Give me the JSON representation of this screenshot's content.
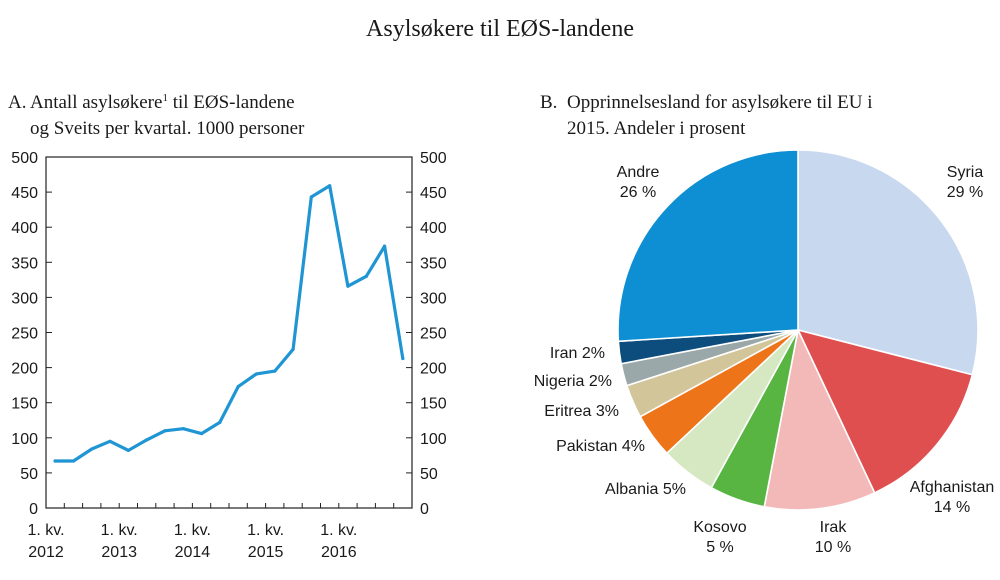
{
  "page_title": "Asylsøkere til EØS-landene",
  "chart_data": [
    {
      "type": "line",
      "panel_letter": "A.",
      "title_line1_pre": "Antall asylsøkere",
      "title_footnote": "1",
      "title_line1_post": " til EØS-landene",
      "title_line2": "og Sveits per kvartal. 1000 personer",
      "ylim": [
        0,
        500
      ],
      "y_ticks": [
        0,
        50,
        100,
        150,
        200,
        250,
        300,
        350,
        400,
        450,
        500
      ],
      "y_tick_labels": [
        "0",
        "50",
        "100",
        "150",
        "200",
        "250",
        "300",
        "350",
        "400",
        "450",
        "500"
      ],
      "x_range": [
        0,
        20
      ],
      "x_ticks": [
        {
          "x": 0,
          "line1": "1. kv.",
          "line2": "2012"
        },
        {
          "x": 4,
          "line1": "1. kv.",
          "line2": "2013"
        },
        {
          "x": 8,
          "line1": "1. kv.",
          "line2": "2014"
        },
        {
          "x": 12,
          "line1": "1. kv.",
          "line2": "2015"
        },
        {
          "x": 16,
          "line1": "1. kv.",
          "line2": "2016"
        }
      ],
      "series": [
        {
          "name": "Asylsøkere",
          "color": "#1f95d4",
          "x": [
            0.5,
            1.5,
            2.5,
            3.5,
            4.5,
            5.5,
            6.5,
            7.5,
            8.5,
            9.5,
            10.5,
            11.5,
            12.5,
            13.5,
            14.5,
            15.5,
            16.5,
            17.5,
            18.5,
            19.5
          ],
          "values": [
            67,
            67,
            84,
            95,
            82,
            97,
            110,
            113,
            106,
            122,
            173,
            191,
            195,
            226,
            443,
            459,
            316,
            330,
            373,
            213
          ]
        }
      ]
    },
    {
      "type": "pie",
      "panel_letter": "B.",
      "title_line1": "Opprinnelsesland for asylsøkere til EU i",
      "title_line2": "2015. Andeler i prosent",
      "slices": [
        {
          "name": "Syria",
          "value": 29,
          "color": "#c8d8ef",
          "label_line1": "Syria",
          "label_line2": "29 %"
        },
        {
          "name": "Afghanistan",
          "value": 14,
          "color": "#e04f4f",
          "label_line1": "Afghanistan",
          "label_line2": "14 %"
        },
        {
          "name": "Irak",
          "value": 10,
          "color": "#f3b9b9",
          "label_line1": "Irak",
          "label_line2": "10 %"
        },
        {
          "name": "Kosovo",
          "value": 5,
          "color": "#58b542",
          "label_line1": "Kosovo",
          "label_line2": "5 %"
        },
        {
          "name": "Albania",
          "value": 5,
          "color": "#d5e8c2",
          "label_line1": "Albania 5%",
          "label_line2": ""
        },
        {
          "name": "Pakistan",
          "value": 4,
          "color": "#ee7419",
          "label_line1": "Pakistan 4%",
          "label_line2": ""
        },
        {
          "name": "Eritrea",
          "value": 3,
          "color": "#d3c59a",
          "label_line1": "Eritrea 3%",
          "label_line2": ""
        },
        {
          "name": "Nigeria",
          "value": 2,
          "color": "#9aa8a9",
          "label_line1": "Nigeria 2%",
          "label_line2": ""
        },
        {
          "name": "Iran",
          "value": 2,
          "color": "#0d4d7e",
          "label_line1": "Iran 2%",
          "label_line2": ""
        },
        {
          "name": "Andre",
          "value": 26,
          "color": "#0e8fd3",
          "label_line1": "Andre",
          "label_line2": "26 %"
        }
      ]
    }
  ]
}
